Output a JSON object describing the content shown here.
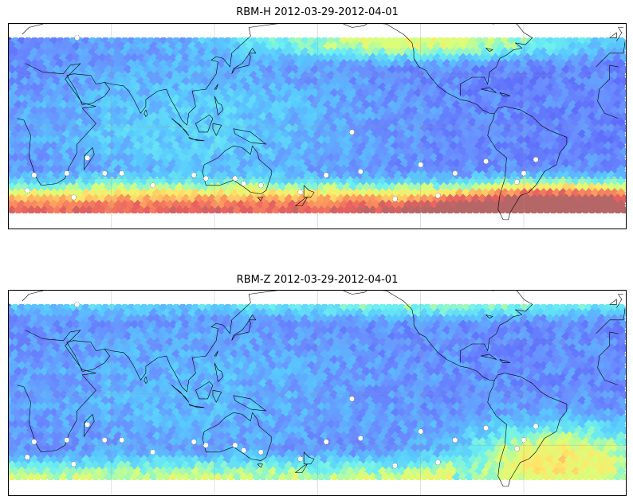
{
  "figure": {
    "panels": [
      {
        "id": "rbm-h",
        "title": "RBM-H 2012-03-29-2012-04-01",
        "field": "h",
        "pole_color": "#b56666"
      },
      {
        "id": "rbm-z",
        "title": "RBM-Z 2012-03-29-2012-04-01",
        "field": "z",
        "pole_color": "#f3b066"
      }
    ],
    "colormap": [
      "#5a62f8",
      "#6a8cff",
      "#59c8ff",
      "#6ff2ee",
      "#d8ff7a",
      "#ffe86a",
      "#ff9a5e",
      "#e86060",
      "#b56666"
    ],
    "grid_lon": [
      -120,
      -60,
      0,
      60,
      120,
      180
    ],
    "grid_lat": [
      -60,
      -30,
      0,
      30,
      60
    ],
    "projection": "equirectangular, central longitude 180",
    "coastline_color": "#000000",
    "station_marker": "white dots"
  }
}
